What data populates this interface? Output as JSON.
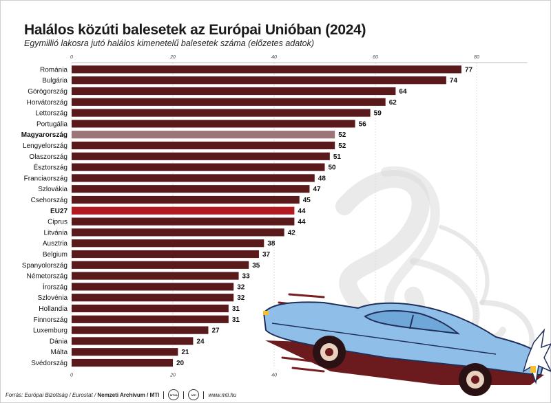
{
  "title": "Halálos közúti balesetek az Európai Unióban (2024)",
  "subtitle": "Egymillió lakosra jutó halálos kimenetelű balesetek száma (előzetes adatok)",
  "colors": {
    "bar": "#5a1a1c",
    "hungary": "#9b7577",
    "eu": "#b01c22"
  },
  "footer": {
    "source": "Forrás: Európai Bizottság / Eurostat / ",
    "credit": "Nemzeti Archívum / MTI",
    "logo1": "MTVA",
    "logo2": "MTI",
    "url": "www.mti.hu"
  },
  "chart_data": {
    "type": "bar",
    "orientation": "horizontal",
    "categories": [
      "Románia",
      "Bulgária",
      "Görögország",
      "Horvátország",
      "Lettország",
      "Portugália",
      "Magyarország",
      "Lengyelország",
      "Olaszország",
      "Észtország",
      "Franciaország",
      "Szlovákia",
      "Csehország",
      "EU27",
      "Ciprus",
      "Litvánia",
      "Ausztria",
      "Belgium",
      "Spanyolország",
      "Németország",
      "Írország",
      "Szlovénia",
      "Hollandia",
      "Finnország",
      "Luxemburg",
      "Dánia",
      "Málta",
      "Svédország"
    ],
    "values": [
      77,
      74,
      64,
      62,
      59,
      56,
      52,
      52,
      51,
      50,
      48,
      47,
      45,
      44,
      44,
      42,
      38,
      37,
      35,
      33,
      32,
      32,
      31,
      31,
      27,
      24,
      21,
      20
    ],
    "highlight": {
      "Magyarország": "hungary",
      "EU27": "eu"
    },
    "bold_labels": [
      "Magyarország",
      "EU27"
    ],
    "xlim": [
      0,
      90
    ],
    "xticks": [
      0,
      20,
      40,
      60,
      80
    ],
    "grid": true,
    "illustration": "car-crash-smoke"
  }
}
